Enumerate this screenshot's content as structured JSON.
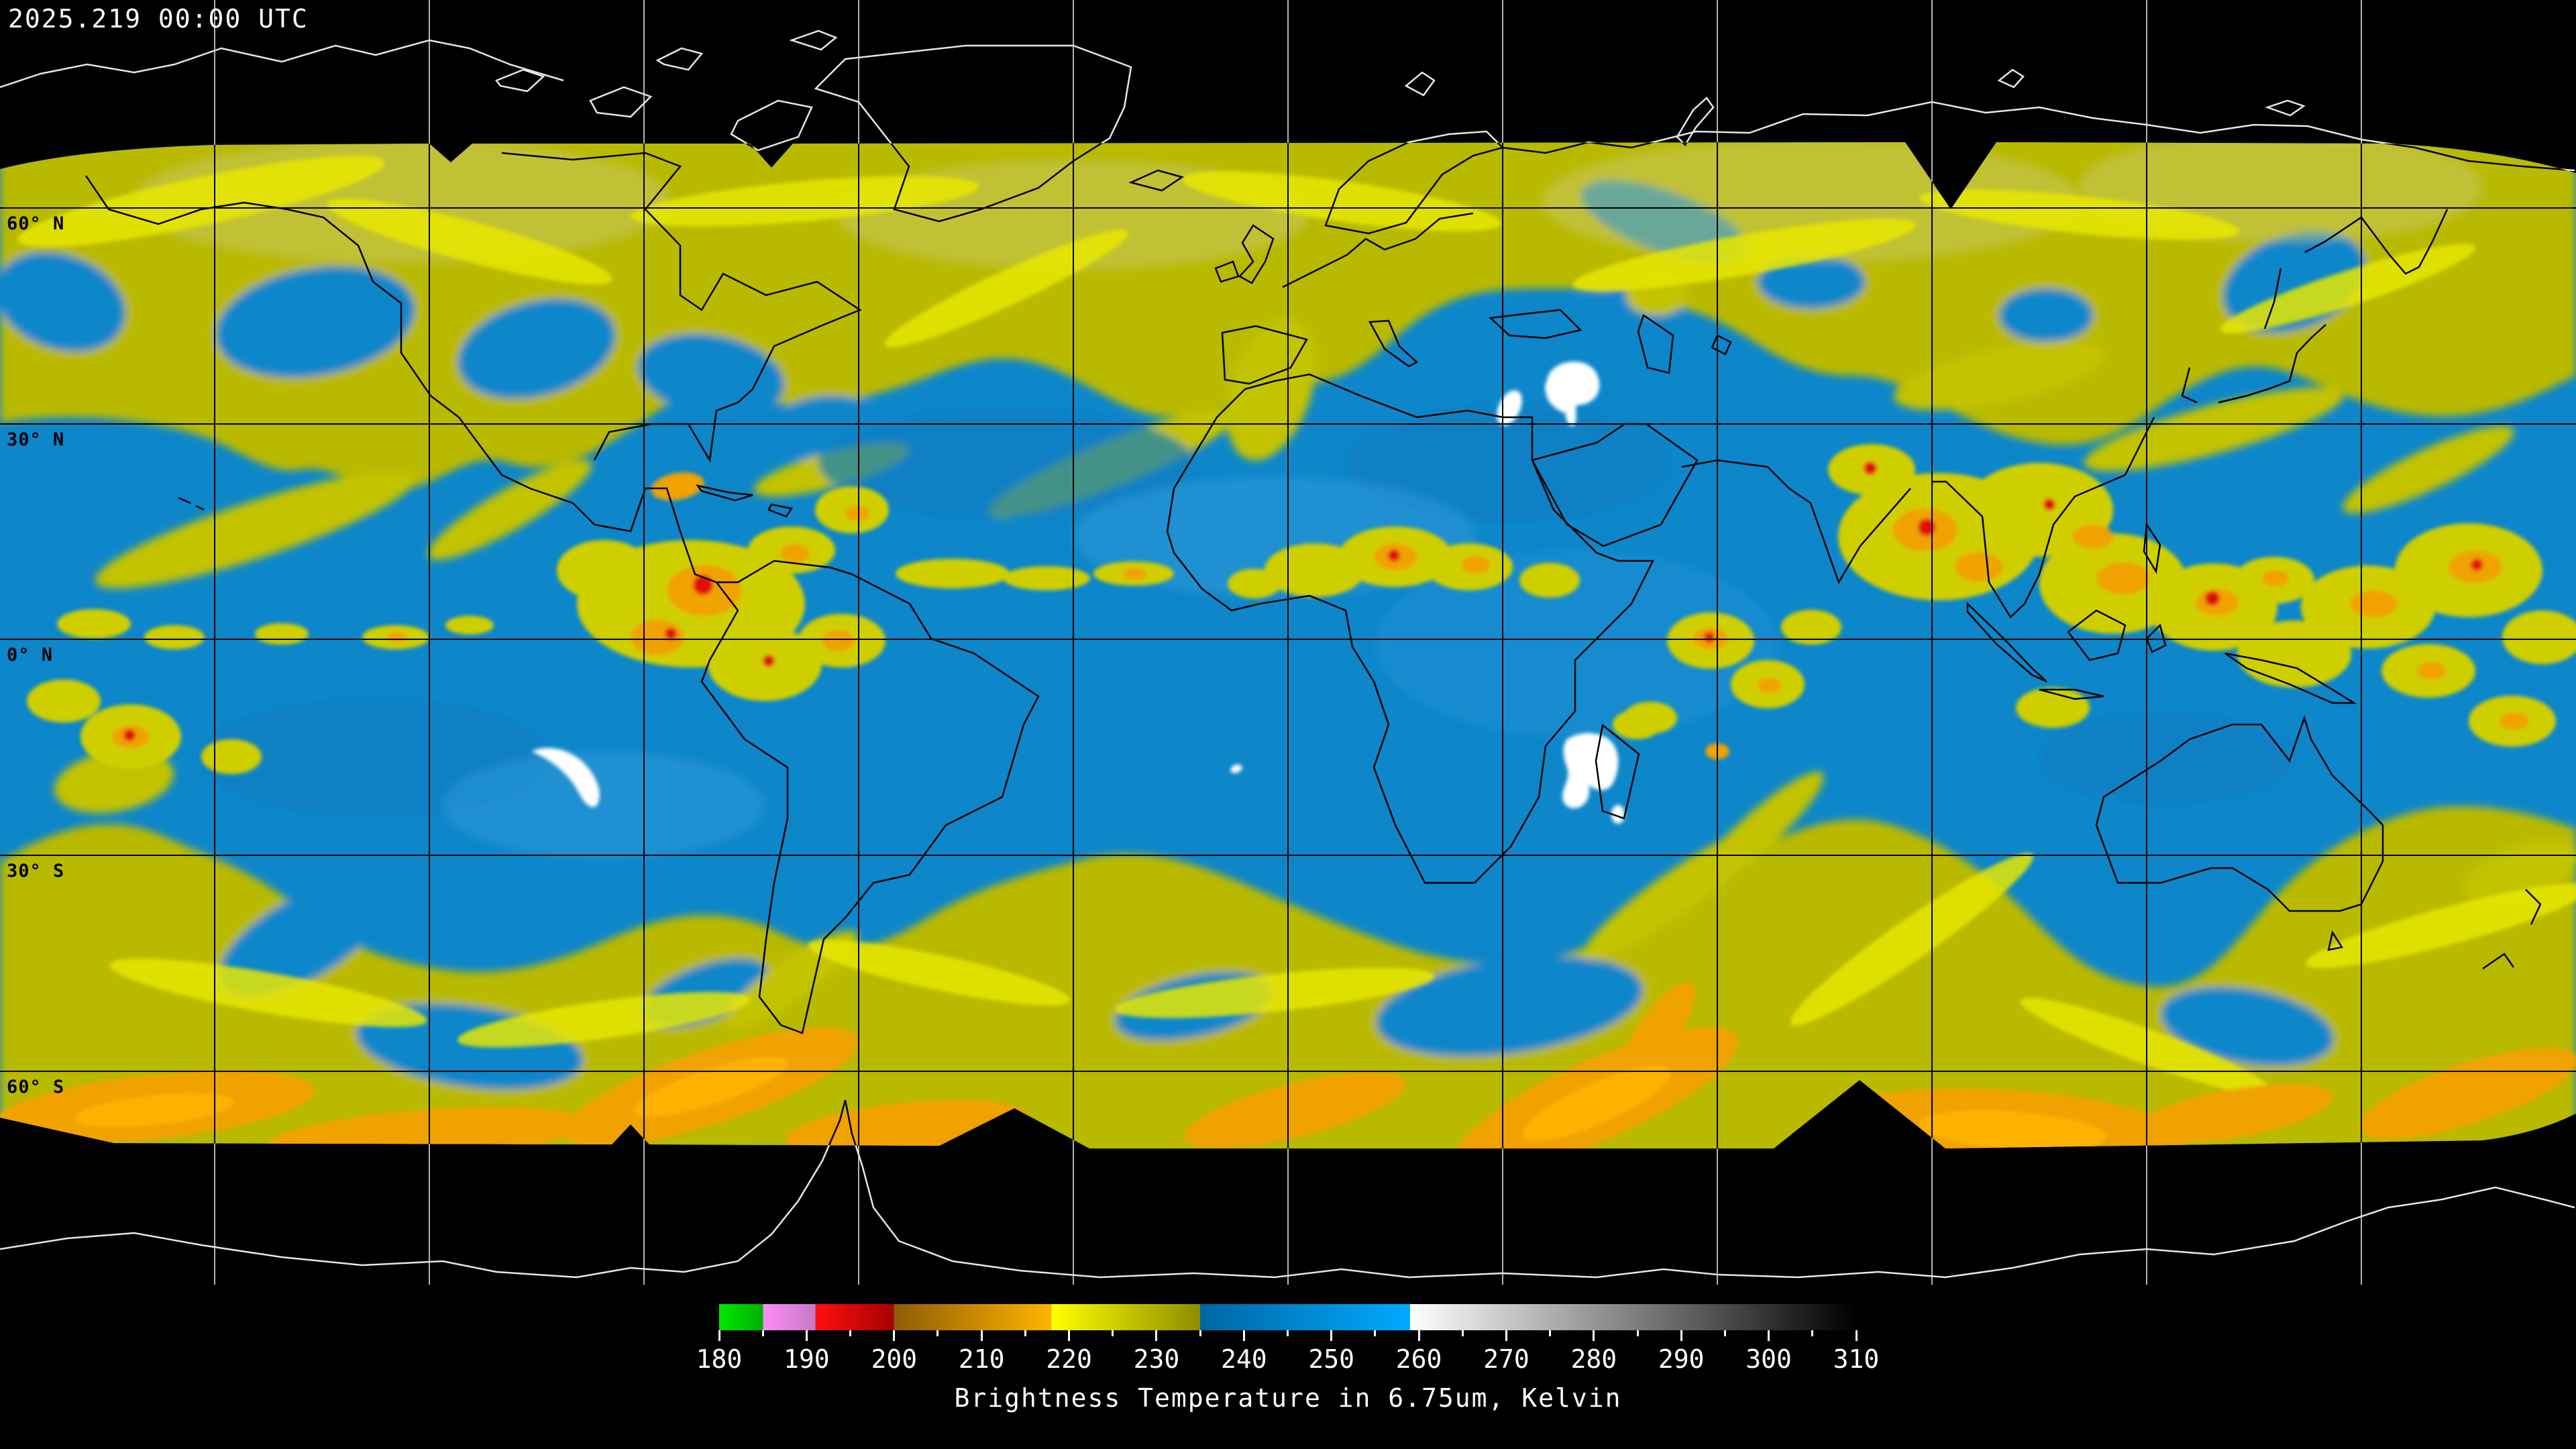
{
  "header": {
    "timestamp": "2025.219 00:00 UTC"
  },
  "map": {
    "latitude_labels": [
      "60° N",
      "30° N",
      "0° N",
      "30° S",
      "60° S"
    ],
    "grid": {
      "lon_step_deg": 30,
      "lat_lines_deg": [
        60,
        30,
        0,
        -30,
        -60
      ]
    },
    "palette": {
      "dry_blue": "#0d86ca",
      "moist_yellow": "#b9b900",
      "bright_yellow": "#e8e800",
      "cold_orange": "#f0a202",
      "coldest_red": "#e11111",
      "warm_white": "#ffffff",
      "grid_over_data": "#000000",
      "grid_over_void": "#b4b4b4",
      "coast_over_data": "#000000",
      "coast_over_void": "#e6e6e6"
    }
  },
  "colorbar": {
    "title": "Brightness Temperature in 6.75um, Kelvin",
    "range_min": 180,
    "range_max": 310,
    "tick_step": 10,
    "minor_tick_step": 5,
    "ticks": [
      "180",
      "190",
      "200",
      "210",
      "220",
      "230",
      "240",
      "250",
      "260",
      "270",
      "280",
      "290",
      "300",
      "310"
    ],
    "segments": [
      {
        "from": 180,
        "to": 185,
        "color_start": "#00e800",
        "color_end": "#00b000"
      },
      {
        "from": 185,
        "to": 191,
        "color_start": "#ff8df6",
        "color_end": "#c678c6"
      },
      {
        "from": 191,
        "to": 200,
        "color_start": "#ff0f0f",
        "color_end": "#a60000"
      },
      {
        "from": 200,
        "to": 218,
        "color_start": "#8e5c06",
        "color_end": "#ffb400"
      },
      {
        "from": 218,
        "to": 235,
        "color_start": "#ffff00",
        "color_end": "#8d8d00"
      },
      {
        "from": 235,
        "to": 259,
        "color_start": "#0066a4",
        "color_end": "#00aaff"
      },
      {
        "from": 259,
        "to": 310,
        "color_start": "#ffffff",
        "color_end": "#000000"
      }
    ]
  }
}
